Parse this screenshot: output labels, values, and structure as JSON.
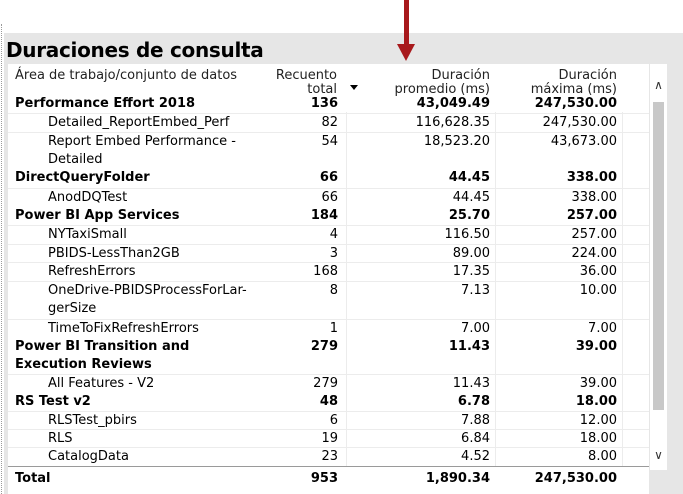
{
  "title": "Duraciones de consulta",
  "headers": {
    "name": "Área de trabajo/conjunto de datos",
    "count_line1": "Recuento",
    "count_line2": "total",
    "avg_line1": "Duración",
    "avg_line2": "promedio (ms)",
    "max_line1": "Duración",
    "max_line2": "máxima (ms)"
  },
  "rows": [
    {
      "name": "Performance Effort 2018",
      "count": "136",
      "avg": "43,049.49",
      "max": "247,530.00"
    },
    {
      "name": "Detailed_ReportEmbed_Perf",
      "count": "82",
      "avg": "116,628.35",
      "max": "247,530.00"
    },
    {
      "name": "Report Embed Performance - Detailed",
      "count": "54",
      "avg": "18,523.20",
      "max": "43,673.00"
    },
    {
      "name": "DirectQueryFolder",
      "count": "66",
      "avg": "44.45",
      "max": "338.00"
    },
    {
      "name": "AnodDQTest",
      "count": "66",
      "avg": "44.45",
      "max": "338.00"
    },
    {
      "name": "Power BI App Services",
      "count": "184",
      "avg": "25.70",
      "max": "257.00"
    },
    {
      "name": "NYTaxiSmall",
      "count": "4",
      "avg": "116.50",
      "max": "257.00"
    },
    {
      "name": "PBIDS-LessThan2GB",
      "count": "3",
      "avg": "89.00",
      "max": "224.00"
    },
    {
      "name": "RefreshErrors",
      "count": "168",
      "avg": "17.35",
      "max": "36.00"
    },
    {
      "name": "OneDrive-PBIDSProcessForLar-gerSize",
      "count": "8",
      "avg": "7.13",
      "max": "10.00"
    },
    {
      "name": "TimeToFixRefreshErrors",
      "count": "1",
      "avg": "7.00",
      "max": "7.00"
    },
    {
      "name": "Power BI Transition and Execution Reviews",
      "count": "279",
      "avg": "11.43",
      "max": "39.00"
    },
    {
      "name": "All Features - V2",
      "count": "279",
      "avg": "11.43",
      "max": "39.00"
    },
    {
      "name": "RS Test v2",
      "count": "48",
      "avg": "6.78",
      "max": "18.00"
    },
    {
      "name": "RLSTest_pbirs",
      "count": "6",
      "avg": "7.88",
      "max": "12.00"
    },
    {
      "name": "RLS",
      "count": "19",
      "avg": "6.84",
      "max": "18.00"
    },
    {
      "name": "CatalogData",
      "count": "23",
      "avg": "4.52",
      "max": "8.00"
    }
  ],
  "total": {
    "name": "Total",
    "count": "953",
    "avg": "1,890.34",
    "max": "247,530.00"
  },
  "icons": {
    "sort": "sort-descending-icon",
    "scroll_up": "chevron-up-icon",
    "scroll_down": "chevron-down-icon"
  },
  "colors": {
    "arrow": "#a8191c",
    "visual_bg": "#e6e6e6"
  }
}
